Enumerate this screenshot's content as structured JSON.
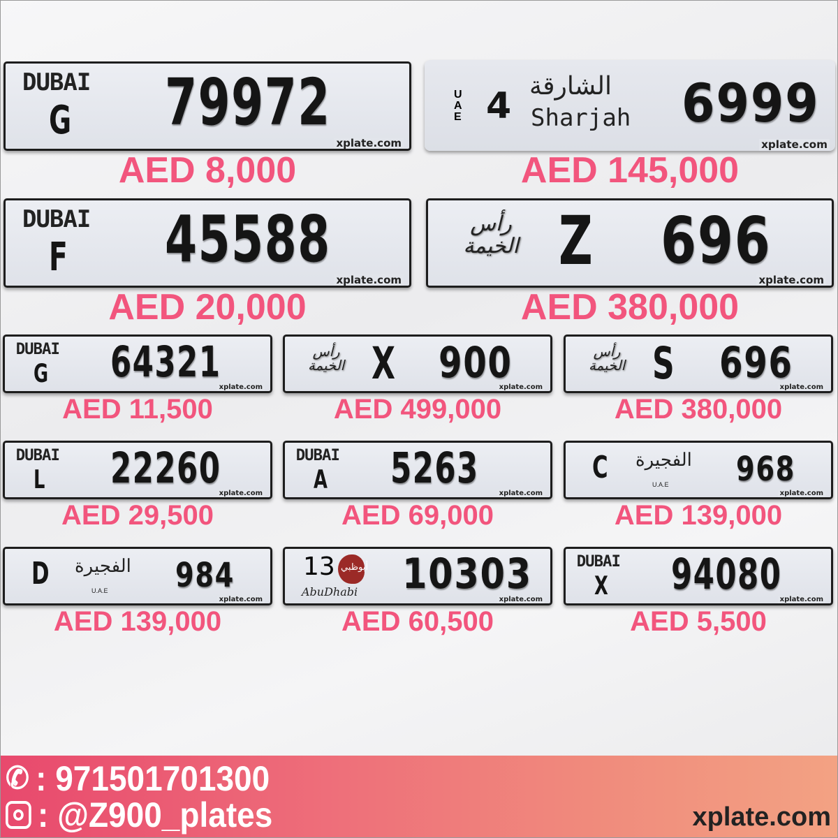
{
  "plates": [
    {
      "type": "dubai",
      "emirate": "DUBAI",
      "code": "G",
      "number": "79972",
      "watermark": "xplate.com",
      "price": "AED 8,000"
    },
    {
      "type": "sharjah",
      "side": "UAE",
      "code": "4",
      "arabic": "الشارقة",
      "emirate": "Sharjah",
      "number": "6999",
      "watermark": "xplate.com",
      "price": "AED 145,000"
    },
    {
      "type": "dubai",
      "emirate": "DUBAI",
      "code": "F",
      "number": "45588",
      "watermark": "xplate.com",
      "price": "AED 20,000"
    },
    {
      "type": "rak",
      "arabic": "رأس الخيمة",
      "code": "Z",
      "number": "696",
      "watermark": "xplate.com",
      "price": "AED 380,000"
    },
    {
      "type": "dubai",
      "emirate": "DUBAI",
      "code": "G",
      "number": "64321",
      "watermark": "xplate.com",
      "price": "AED 11,500"
    },
    {
      "type": "rak",
      "arabic": "رأس الخيمة",
      "code": "X",
      "number": "900",
      "watermark": "xplate.com",
      "price": "AED 499,000"
    },
    {
      "type": "rak",
      "arabic": "رأس الخيمة",
      "code": "S",
      "number": "696",
      "watermark": "xplate.com",
      "price": "AED 380,000"
    },
    {
      "type": "dubai",
      "emirate": "DUBAI",
      "code": "L",
      "number": "22260",
      "watermark": "xplate.com",
      "price": "AED 29,500"
    },
    {
      "type": "dubai",
      "emirate": "DUBAI",
      "code": "A",
      "number": "5263",
      "watermark": "xplate.com",
      "price": "AED 69,000"
    },
    {
      "type": "fujairah",
      "code": "C",
      "arabic": "الفجيرة",
      "sub": "U.A.E",
      "number": "968",
      "watermark": "xplate.com",
      "price": "AED 139,000"
    },
    {
      "type": "fujairah",
      "code": "D",
      "arabic": "الفجيرة",
      "sub": "U.A.E",
      "number": "984",
      "watermark": "xplate.com",
      "price": "AED 139,000"
    },
    {
      "type": "abudhabi",
      "code": "13",
      "arabic": "أبوظبي",
      "emirate": "AbuDhabi",
      "number": "10303",
      "watermark": "xplate.com",
      "price": "AED 60,500"
    },
    {
      "type": "dubai",
      "emirate": "DUBAI",
      "code": "X",
      "number": "94080",
      "watermark": "xplate.com",
      "price": "AED 5,500"
    }
  ],
  "footer": {
    "phone_icon": "phone-icon",
    "phone": ": 971501701300",
    "instagram_icon": "instagram-icon",
    "instagram": ": @Z900_plates",
    "site": "xplate.com"
  },
  "colors": {
    "price": "#f2557d",
    "footer_start": "#e8496d",
    "footer_end": "#f3a283"
  }
}
